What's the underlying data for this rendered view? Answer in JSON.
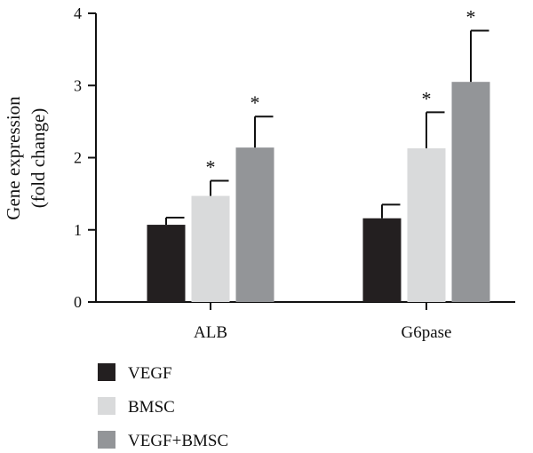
{
  "chart_data": {
    "type": "bar",
    "title": "",
    "ylabel_lines": [
      "Gene expression",
      "(fold change)"
    ],
    "xlabel": "",
    "categories": [
      "ALB",
      "G6pase"
    ],
    "ylim": [
      0,
      4
    ],
    "yticks": [
      0,
      1,
      2,
      3,
      4
    ],
    "grid": false,
    "legend_position": "bottom-left",
    "series": [
      {
        "name": "VEGF",
        "color": "#231f20",
        "values": [
          1.07,
          1.16
        ],
        "errors": [
          0.1,
          0.19
        ],
        "significance": [
          "",
          ""
        ]
      },
      {
        "name": "BMSC",
        "color": "#d9dadb",
        "values": [
          1.47,
          2.13
        ],
        "errors": [
          0.21,
          0.5
        ],
        "significance": [
          "*",
          "*"
        ]
      },
      {
        "name": "VEGF+BMSC",
        "color": "#939598",
        "values": [
          2.14,
          3.05
        ],
        "errors": [
          0.43,
          0.71
        ],
        "significance": [
          "*",
          "*"
        ]
      }
    ]
  }
}
